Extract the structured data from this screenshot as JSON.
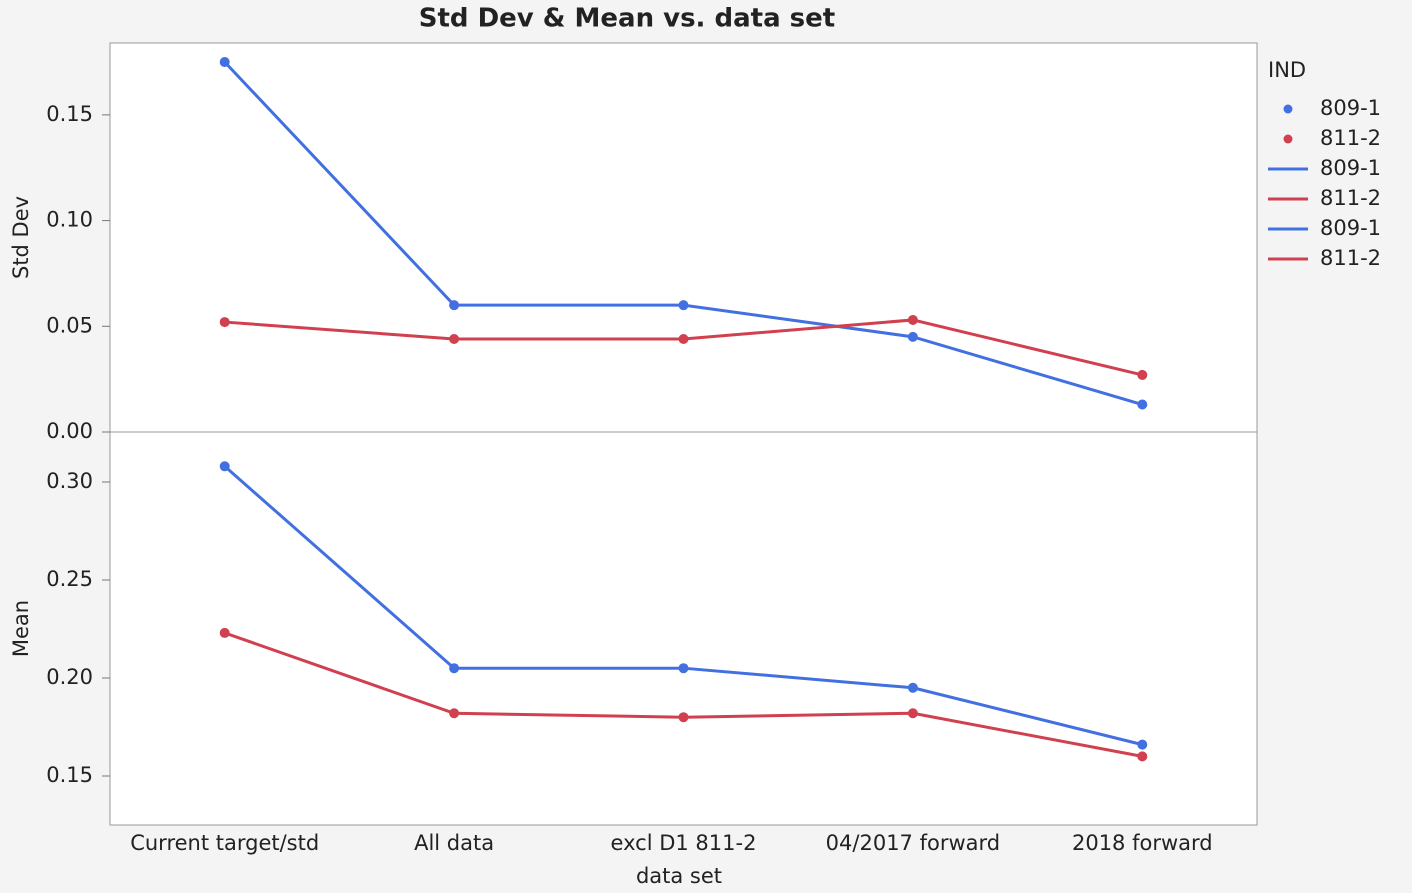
{
  "chart_data": [
    {
      "type": "line",
      "title": "Std Dev & Mean vs. data set",
      "y_label": "Std Dev",
      "legend_title": "IND",
      "ylim": [
        0,
        0.184
      ],
      "yticks": [
        {
          "value": 0,
          "label": "0.00"
        },
        {
          "value": 0.05,
          "label": "0.05"
        },
        {
          "value": 0.1,
          "label": "0.10"
        },
        {
          "value": 0.15,
          "label": "0.15"
        }
      ],
      "series": [
        {
          "name": "809-1",
          "color": "#4270e0",
          "values": [
            0.175,
            0.06,
            0.06,
            0.045,
            0.013
          ]
        },
        {
          "name": "811-2",
          "color": "#d0404f",
          "values": [
            0.052,
            0.044,
            0.044,
            0.053,
            0.027
          ]
        }
      ]
    },
    {
      "type": "line",
      "y_label": "Mean",
      "x_label": "data set",
      "categories": [
        "Current target/std",
        "All data",
        "excl D1 811-2",
        "04/2017 forward",
        "2018 forward"
      ],
      "ylim": [
        0.125,
        0.3255
      ],
      "yticks": [
        {
          "value": 0.15,
          "label": "0.15"
        },
        {
          "value": 0.2,
          "label": "0.20"
        },
        {
          "value": 0.25,
          "label": "0.25"
        },
        {
          "value": 0.3,
          "label": "0.30"
        }
      ],
      "series": [
        {
          "name": "809-1",
          "color": "#4270e0",
          "values": [
            0.308,
            0.205,
            0.205,
            0.195,
            0.166
          ]
        },
        {
          "name": "811-2",
          "color": "#d0404f",
          "values": [
            0.223,
            0.182,
            0.18,
            0.182,
            0.16
          ]
        }
      ]
    }
  ]
}
